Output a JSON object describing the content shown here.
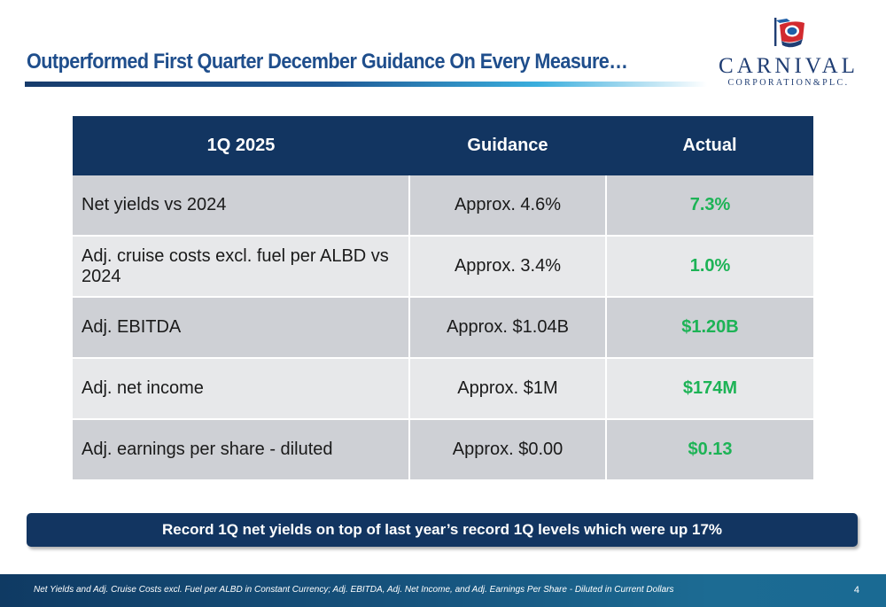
{
  "slide": {
    "title": "Outperformed First Quarter December Guidance On Every Measure…"
  },
  "logo": {
    "wordmark": "CARNIVAL",
    "subtitle": "CORPORATION&PLC.",
    "colors": {
      "navy": "#1f3d73",
      "red": "#d22a2f",
      "blue": "#1f5fa8"
    }
  },
  "table": {
    "headers": [
      "1Q 2025",
      "Guidance",
      "Actual"
    ],
    "rows": [
      {
        "measure": "Net yields vs 2024",
        "guidance": "Approx. 4.6%",
        "actual": "7.3%"
      },
      {
        "measure": "Adj. cruise costs excl. fuel per ALBD vs 2024",
        "guidance": "Approx. 3.4%",
        "actual": "1.0%"
      },
      {
        "measure": "Adj. EBITDA",
        "guidance": "Approx. $1.04B",
        "actual": "$1.20B"
      },
      {
        "measure": "Adj. net income",
        "guidance": "Approx. $1M",
        "actual": "$174M"
      },
      {
        "measure": "Adj. earnings per share - diluted",
        "guidance": "Approx. $0.00",
        "actual": "$0.13"
      }
    ]
  },
  "banner": {
    "text": "Record 1Q net yields on top of last year’s record 1Q levels which were up 17%"
  },
  "footer": {
    "note": "Net Yields and Adj. Cruise Costs excl. Fuel per ALBD in Constant Currency; Adj. EBITDA, Adj. Net Income, and Adj. Earnings Per Share - Diluted in Current Dollars",
    "page_number": "4"
  },
  "colors": {
    "header_bg": "#123561",
    "title_text": "#1f4e8c",
    "actual_green": "#1db356",
    "row_dark": "#ced0d5",
    "row_light": "#e7e8ea"
  }
}
